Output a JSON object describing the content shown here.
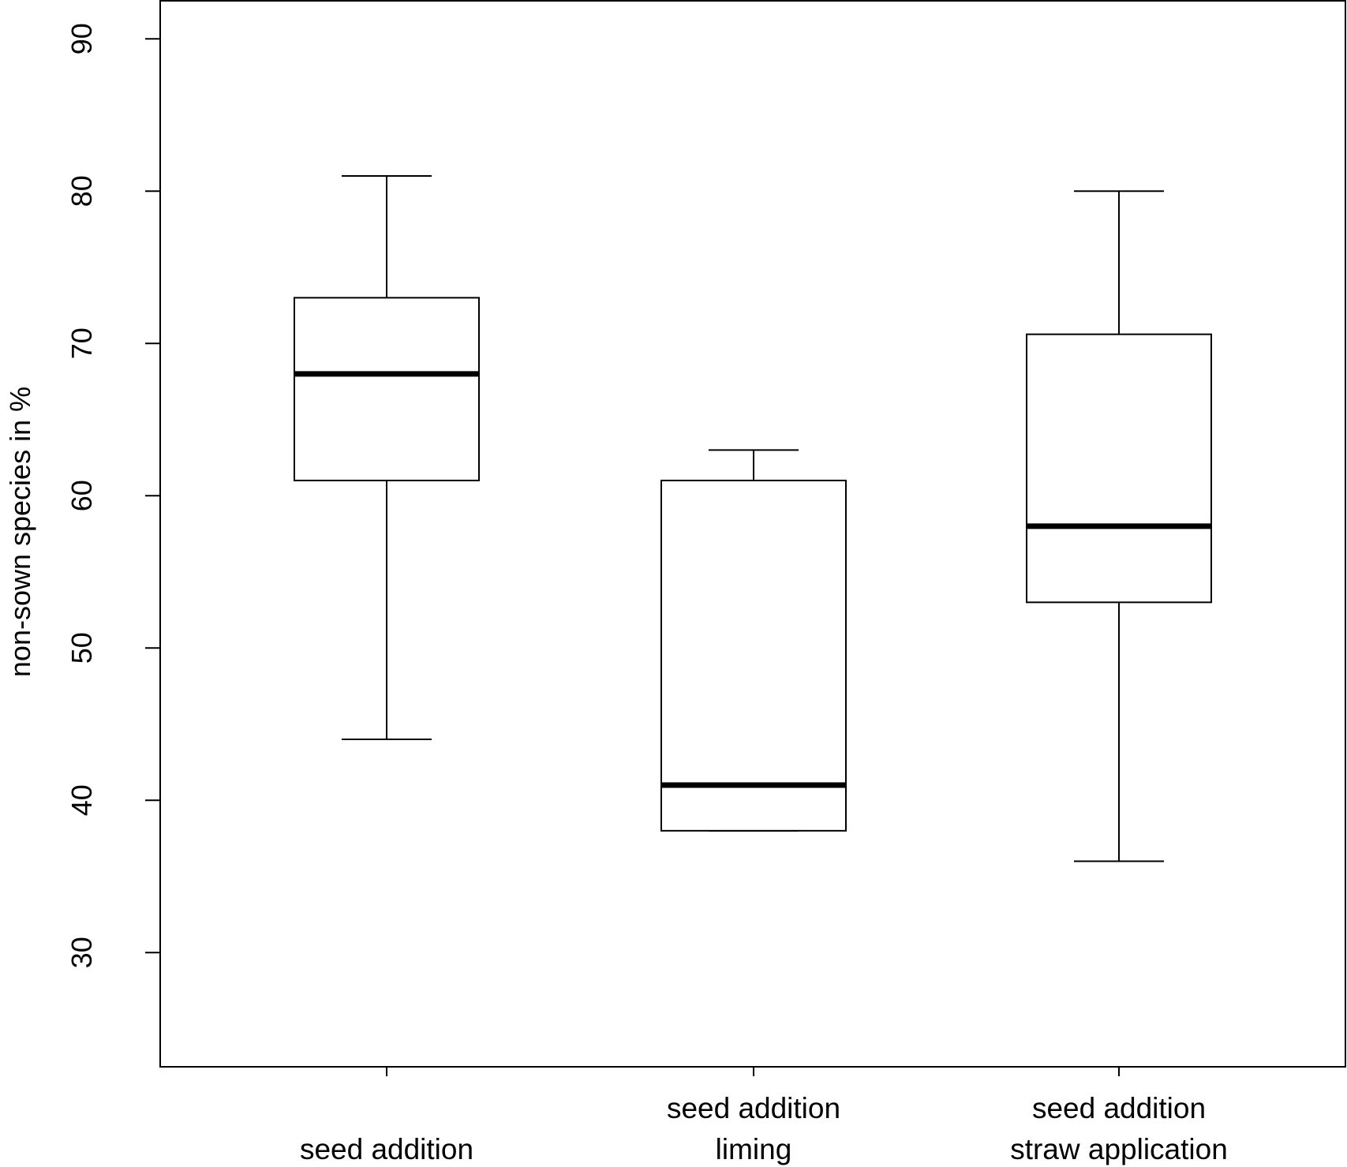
{
  "chart_data": {
    "type": "boxplot",
    "title": "",
    "ylabel": "non-sown species in %",
    "xlabel": "",
    "ylim": [
      22.5,
      92.5
    ],
    "yticks": [
      30,
      40,
      50,
      60,
      70,
      80,
      90
    ],
    "grid": false,
    "categories": [
      {
        "lines": [
          "seed addition"
        ]
      },
      {
        "lines": [
          "seed addition",
          "liming"
        ]
      },
      {
        "lines": [
          "seed addition",
          "straw application"
        ]
      }
    ],
    "boxes": [
      {
        "whisker_low": 44,
        "q1": 61,
        "median": 68,
        "q3": 73,
        "whisker_high": 81
      },
      {
        "whisker_low": 38,
        "q1": 38,
        "median": 41,
        "q3": 61,
        "whisker_high": 63
      },
      {
        "whisker_low": 36,
        "q1": 53,
        "median": 58,
        "q3": 70.6,
        "whisker_high": 80
      }
    ],
    "colors": {
      "line": "#000000",
      "box_fill": "#ffffff"
    }
  }
}
